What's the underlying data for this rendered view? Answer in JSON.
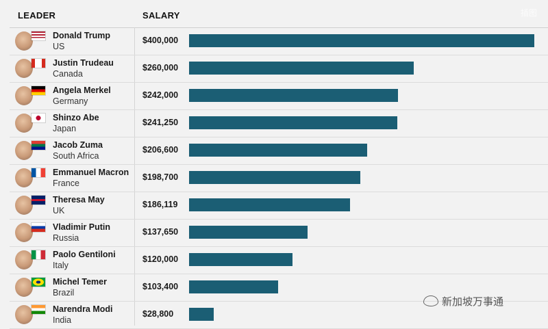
{
  "header": {
    "leader": "LEADER",
    "salary": "SALARY"
  },
  "chart_data": {
    "type": "bar",
    "orientation": "horizontal",
    "columns": [
      "LEADER",
      "SALARY"
    ],
    "categories": [
      "Donald Trump",
      "Justin Trudeau",
      "Angela Merkel",
      "Shinzo Abe",
      "Jacob Zuma",
      "Emmanuel Macron",
      "Theresa May",
      "Vladimir Putin",
      "Paolo Gentiloni",
      "Michel Temer",
      "Narendra Modi"
    ],
    "countries": [
      "US",
      "Canada",
      "Germany",
      "Japan",
      "South Africa",
      "France",
      "UK",
      "Russia",
      "Italy",
      "Brazil",
      "India"
    ],
    "values": [
      400000,
      260000,
      242000,
      241250,
      206600,
      198700,
      186119,
      137650,
      120000,
      103400,
      28800
    ],
    "value_labels": [
      "$400,000",
      "$260,000",
      "$242,000",
      "$241,250",
      "$206,600",
      "$198,700",
      "$186,119",
      "$137,650",
      "$120,000",
      "$103,400",
      "$28,800"
    ],
    "xlim": [
      0,
      400000
    ],
    "bar_color": "#1b5e74",
    "grid": false
  },
  "watermark": {
    "brand": "新加坡万事通",
    "top_right": "插图"
  },
  "colors": {
    "background": "#f2f2f2",
    "bar": "#1b5e74"
  }
}
